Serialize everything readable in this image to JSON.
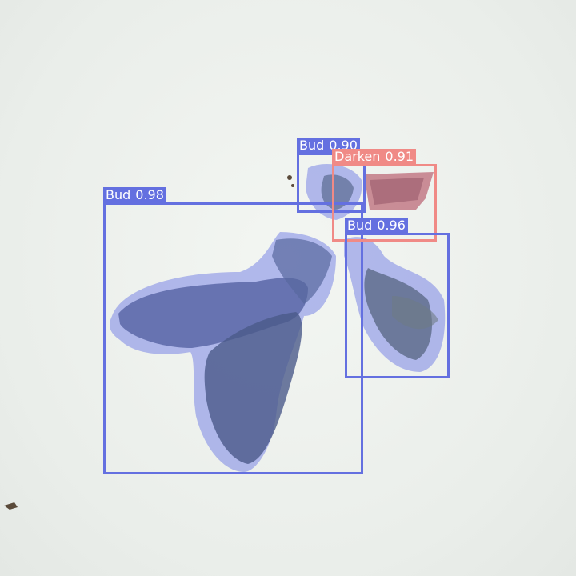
{
  "image": {
    "description_colors": {
      "background": "#eef2ee",
      "bud_overlay": "#6b77d8",
      "darken_overlay": "#e07c7c"
    }
  },
  "detections": [
    {
      "class": "Bud",
      "score": "0.98",
      "color": "#6470e0"
    },
    {
      "class": "Bud",
      "score": "0.90",
      "color": "#6470e0"
    },
    {
      "class": "Darken",
      "score": "0.91",
      "color": "#f08a86"
    },
    {
      "class": "Bud",
      "score": "0.96",
      "color": "#6470e0"
    }
  ]
}
